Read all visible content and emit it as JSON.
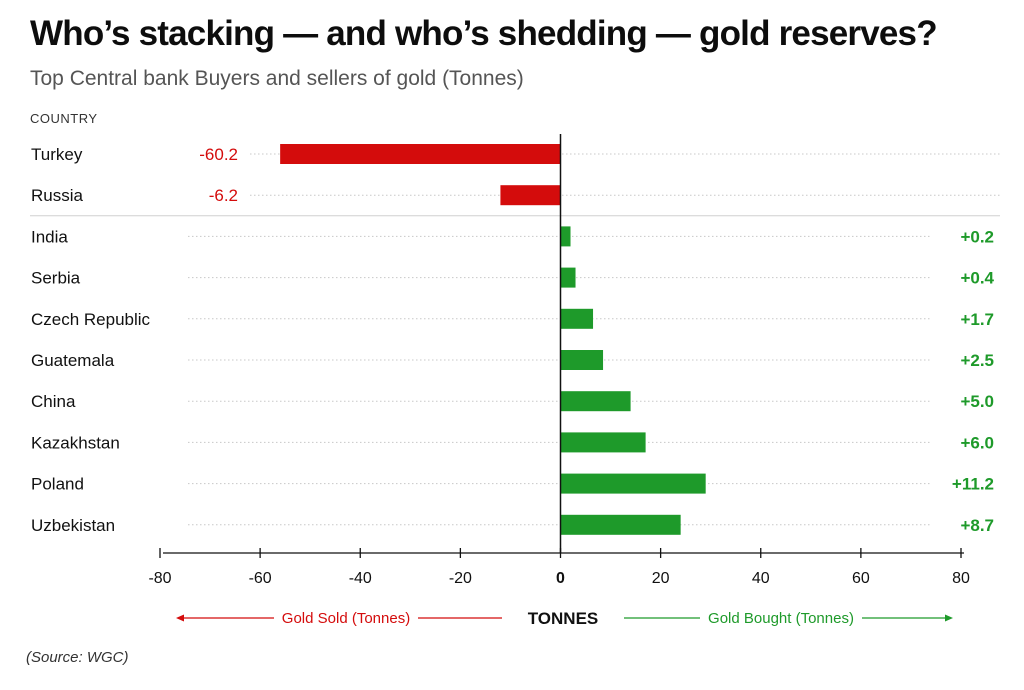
{
  "title": "Who’s stacking — and who’s shedding — gold reserves?",
  "subtitle": "Top Central bank Buyers and sellers of gold (Tonnes)",
  "source": "(Source: WGC)",
  "colors": {
    "sold": "#d40c0c",
    "bought": "#1e9a2a",
    "axis": "#111111",
    "grid": "#c8c8c8"
  },
  "chart_data": {
    "type": "bar",
    "orientation": "horizontal",
    "category_header": "COUNTRY",
    "xlabel": "TONNES",
    "xlim": [
      -80,
      80
    ],
    "xticks": [
      "-80",
      "-60",
      "-40",
      "-20",
      "0",
      "20",
      "40",
      "60",
      "80"
    ],
    "legend_sold": "Gold Sold (Tonnes)",
    "legend_bought": "Gold Bought (Tonnes)",
    "categories": [
      "Turkey",
      "Russia",
      "India",
      "Serbia",
      "Czech Republic",
      "Guatemala",
      "China",
      "Kazakhstan",
      "Poland",
      "Uzbekistan"
    ],
    "values": [
      -56,
      -12,
      2,
      3,
      6.5,
      8.5,
      14,
      17,
      29,
      24
    ],
    "data_labels": [
      "-60.2",
      "-6.2",
      "+0.2",
      "+0.4",
      "+1.7",
      "+2.5",
      "+5.0",
      "+6.0",
      "+11.2",
      "+8.7"
    ]
  }
}
